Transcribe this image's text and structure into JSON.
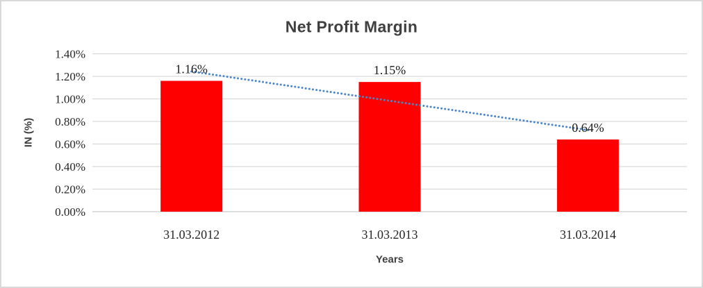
{
  "chart_data": {
    "type": "bar",
    "title": "Net Profit Margin",
    "categories": [
      "31.03.2012",
      "31.03.2013",
      "31.03.2014"
    ],
    "values": [
      1.16,
      1.15,
      0.64
    ],
    "data_labels": [
      "1.16%",
      "1.15%",
      "0.64%"
    ],
    "xlabel": "Years",
    "ylabel": "IN (%)",
    "ylim": [
      0,
      1.4
    ],
    "ytick_step": 0.2,
    "ytick_labels": [
      "0.00%",
      "0.20%",
      "0.40%",
      "0.60%",
      "0.80%",
      "1.00%",
      "1.20%",
      "1.40%"
    ],
    "grid": "horizontal",
    "legend": "none",
    "trendline": {
      "type": "linear",
      "style": "dotted",
      "color": "#4A86C8"
    },
    "colors": {
      "bar": "#FF0000",
      "gridline": "#D9D9D9",
      "axis_line": "#C9C9C9",
      "tick_label": "#262626",
      "data_label": "#1A1A1A",
      "title": "#3F3F3F",
      "border": "#D9D9D9",
      "background": "#FFFFFF"
    }
  }
}
